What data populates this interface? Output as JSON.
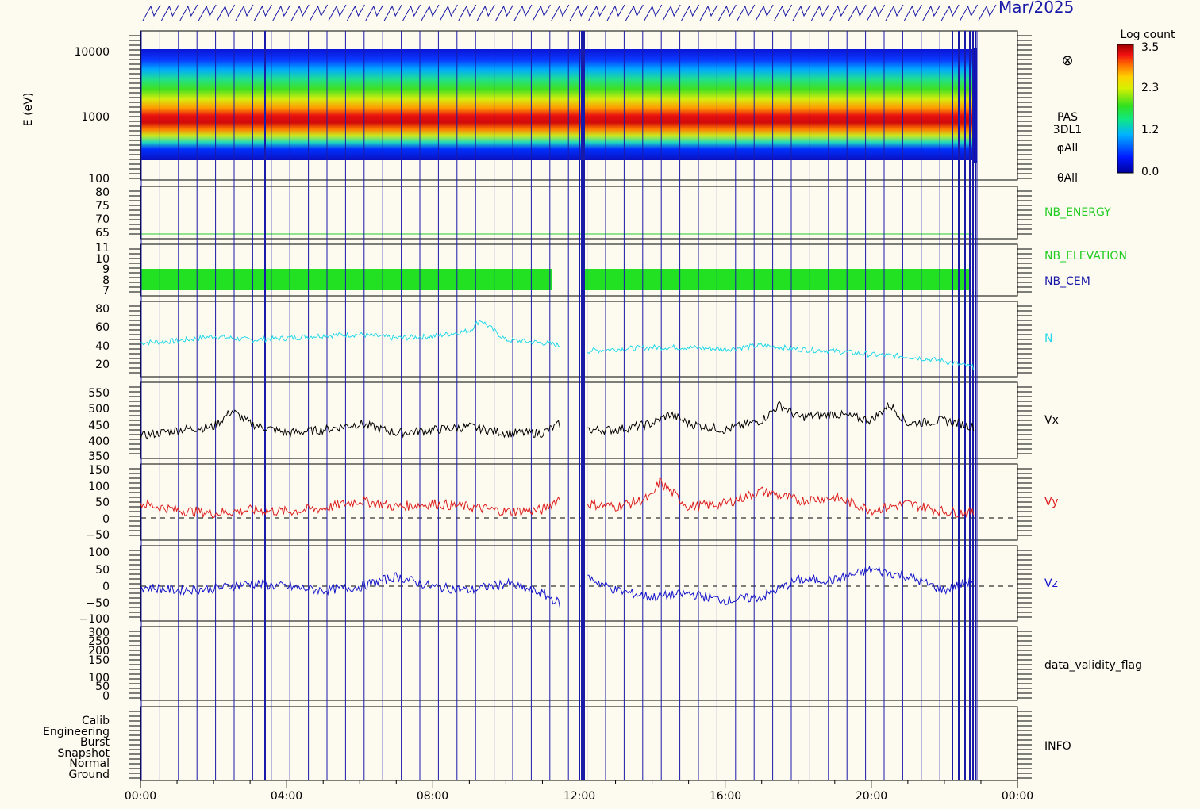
{
  "header": {
    "date_fragment": "Mar/2025"
  },
  "colorbar": {
    "title": "Log count",
    "ticks": [
      "3.5",
      "2.3",
      "1.2",
      "0.0"
    ]
  },
  "panels": {
    "spectrogram": {
      "ylabel": "E (eV)",
      "yticks": [
        "10000",
        "1000",
        "100"
      ],
      "right_labels": [
        "PAS",
        "3DL1",
        "φAll",
        "θAll"
      ],
      "symbol": "⊗"
    },
    "nb_energy": {
      "label": "NB_ENERGY",
      "yticks": [
        "80",
        "75",
        "70",
        "65"
      ],
      "color": "#22cc22"
    },
    "nb_elev": {
      "label_elev": "NB_ELEVATION",
      "label_cem": "NB_CEM",
      "yticks": [
        "11",
        "10",
        "9",
        "8",
        "7"
      ],
      "elev_color": "#22cc22",
      "cem_color": "#1a1aa8"
    },
    "density": {
      "label": "N",
      "yticks": [
        "80",
        "60",
        "40",
        "20"
      ],
      "color": "#22d8e8"
    },
    "vx": {
      "label": "Vx",
      "yticks": [
        "550",
        "500",
        "450",
        "400",
        "350"
      ],
      "color": "#000000"
    },
    "vy": {
      "label": "Vy",
      "yticks": [
        "150",
        "100",
        "50",
        "0",
        "−50"
      ],
      "color": "#dd1c1c"
    },
    "vz": {
      "label": "Vz",
      "yticks": [
        "100",
        "50",
        "0",
        "−50",
        "−100"
      ],
      "color": "#1414cc"
    },
    "validity": {
      "label": "data_validity_flag",
      "yticks": [
        "300",
        "250",
        "200",
        "150",
        "100",
        "50",
        "0"
      ]
    },
    "info": {
      "label": "INFO",
      "yticks": [
        "Calib",
        "Engineering",
        "Burst",
        "Snapshot",
        "Normal",
        "Ground"
      ]
    }
  },
  "xaxis": {
    "ticks": [
      "00:00",
      "04:00",
      "08:00",
      "12:00",
      "16:00",
      "20:00",
      "00:00"
    ]
  },
  "chart_data": {
    "type": "line",
    "x_unit": "hour of day",
    "xlim": [
      0,
      24
    ],
    "series": [
      {
        "name": "N",
        "x": [
          0,
          1,
          2,
          3,
          4,
          5,
          6,
          7,
          8,
          9,
          9.3,
          10,
          11,
          11.5,
          12.2,
          13,
          14,
          15,
          16,
          17,
          18,
          19,
          20,
          21,
          22,
          22.8
        ],
        "values": [
          45,
          47,
          52,
          48,
          50,
          53,
          54,
          50,
          52,
          58,
          70,
          48,
          45,
          42,
          36,
          38,
          40,
          40,
          38,
          42,
          38,
          36,
          32,
          30,
          25,
          18
        ]
      },
      {
        "name": "Vx",
        "x": [
          0,
          1,
          2,
          2.5,
          3,
          4,
          5,
          6,
          7,
          8,
          9,
          10,
          11,
          11.5,
          12.2,
          13,
          14,
          14.5,
          15,
          16,
          17,
          17.5,
          18,
          19,
          20,
          20.5,
          21,
          22,
          22.8
        ],
        "values": [
          410,
          430,
          440,
          490,
          450,
          420,
          430,
          450,
          420,
          430,
          440,
          420,
          420,
          450,
          430,
          430,
          450,
          480,
          450,
          430,
          460,
          510,
          470,
          480,
          460,
          510,
          450,
          460,
          440
        ]
      },
      {
        "name": "Vy",
        "x": [
          0,
          1,
          2,
          3,
          4,
          5,
          6,
          7,
          8,
          9,
          10,
          11,
          11.5,
          12.2,
          13,
          14,
          14.2,
          15,
          16,
          17,
          18,
          19,
          20,
          21,
          22,
          22.8
        ],
        "values": [
          40,
          20,
          10,
          20,
          15,
          25,
          50,
          30,
          40,
          30,
          15,
          20,
          60,
          40,
          30,
          60,
          110,
          30,
          40,
          80,
          50,
          60,
          20,
          40,
          15,
          10
        ]
      },
      {
        "name": "Vz",
        "x": [
          0,
          1,
          2,
          3,
          4,
          5,
          6,
          7,
          8,
          9,
          10,
          11,
          11.5,
          12,
          12.2,
          13,
          14,
          15,
          16,
          17,
          18,
          19,
          20,
          21,
          22,
          22.8
        ],
        "values": [
          -10,
          -20,
          -15,
          0,
          -10,
          -20,
          -10,
          20,
          -10,
          -20,
          0,
          -30,
          -60,
          -40,
          20,
          -20,
          -40,
          -30,
          -50,
          -40,
          10,
          10,
          40,
          20,
          -20,
          10
        ]
      }
    ]
  }
}
